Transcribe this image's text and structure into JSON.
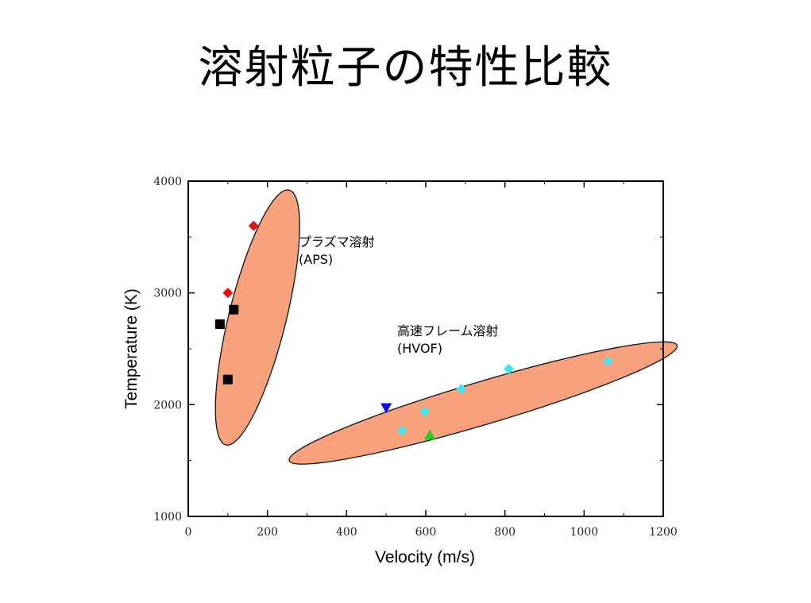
{
  "slide": {
    "title": "溶射粒子の特性比較"
  },
  "chart_data": {
    "type": "scatter",
    "title": "",
    "xlabel": "Velocity (m/s)",
    "ylabel": "Temperature (K)",
    "xlim": [
      0,
      1200
    ],
    "ylim": [
      1000,
      4000
    ],
    "x_ticks": [
      0,
      200,
      400,
      600,
      800,
      1000,
      1200
    ],
    "y_ticks": [
      1000,
      2000,
      3000,
      4000
    ],
    "grid": false,
    "colors": {
      "region_fill": "#F7A27C",
      "region_stroke": "#111111",
      "red": "#E81010",
      "black": "#000000",
      "blue": "#1010E0",
      "green": "#22CC22",
      "cyan": "#44E4EE"
    },
    "regions": [
      {
        "label_line1": "プラズマ溶射",
        "label_line2": "(APS)",
        "center": [
          175,
          2780
        ],
        "ends": [
          [
            95,
            1640
          ],
          [
            255,
            3920
          ]
        ],
        "semi_minor": 36
      },
      {
        "label_line1": "高速フレーム溶射",
        "label_line2": "(HVOF)",
        "center": [
          745,
          2015
        ],
        "ends": [
          [
            255,
            1500
          ],
          [
            1235,
            2530
          ]
        ],
        "semi_minor": 27
      }
    ],
    "series": [
      {
        "marker": "diamond",
        "color": "red",
        "points": [
          [
            165,
            3600
          ],
          [
            100,
            3000
          ]
        ]
      },
      {
        "marker": "square",
        "color": "black",
        "points": [
          [
            115,
            2850
          ],
          [
            80,
            2720
          ],
          [
            100,
            2225
          ]
        ]
      },
      {
        "marker": "triangle-down",
        "color": "blue",
        "points": [
          [
            500,
            1970
          ]
        ]
      },
      {
        "marker": "triangle-up",
        "color": "green",
        "points": [
          [
            610,
            1730
          ]
        ]
      },
      {
        "marker": "diamond",
        "color": "cyan",
        "points": [
          [
            540,
            1770
          ],
          [
            597,
            1940
          ],
          [
            690,
            2140
          ],
          [
            810,
            2320
          ],
          [
            1060,
            2390
          ]
        ]
      }
    ]
  }
}
